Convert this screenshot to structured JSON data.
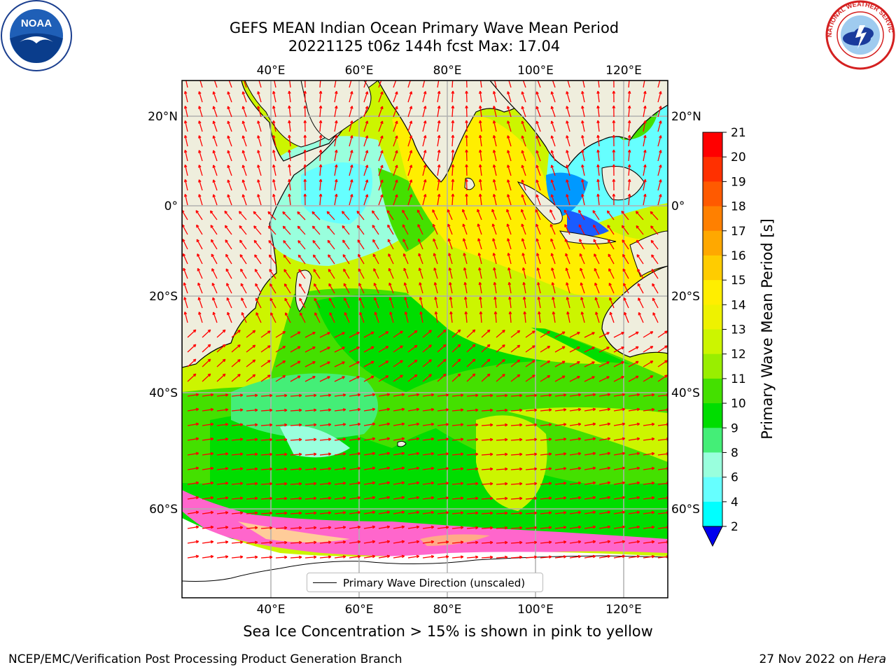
{
  "title": {
    "line1": "GEFS MEAN Indian Ocean Primary Wave Mean Period",
    "line2": "20221125 t06z 144h fcst   Max: 17.04"
  },
  "logos": {
    "left": {
      "name": "noaa-logo",
      "text": "NOAA"
    },
    "right": {
      "name": "nws-logo",
      "text": "NATIONAL WEATHER SERVICE"
    }
  },
  "map": {
    "lon_ticks": [
      "40°E",
      "60°E",
      "80°E",
      "100°E",
      "120°E"
    ],
    "lat_ticks_left": [
      "20°N",
      "0°",
      "20°S",
      "40°S",
      "60°S"
    ],
    "lat_ticks_right": [
      "20°N",
      "0°",
      "20°S",
      "40°S",
      "60°S"
    ],
    "legend_label": "Primary Wave Direction (unscaled)",
    "colors": {
      "land": "#efeedd",
      "arrow": "#ff0000",
      "grid": "#b0b0b0"
    }
  },
  "colorbar": {
    "title": "Primary Wave Mean Period [s]",
    "labels": [
      "21",
      "20",
      "19",
      "18",
      "17",
      "16",
      "15",
      "14",
      "13",
      "12",
      "11",
      "10",
      "9",
      "8",
      "6",
      "4",
      "2"
    ],
    "colors": [
      "#ff0000",
      "#ff3000",
      "#ff5a00",
      "#ff8000",
      "#ffa800",
      "#ffcc00",
      "#ffee00",
      "#eef200",
      "#ccf500",
      "#99ee00",
      "#44e000",
      "#00dd00",
      "#44ee77",
      "#99ffdd",
      "#66ffff",
      "#00ffff",
      "#0099ff",
      "#0000ee"
    ]
  },
  "footer": {
    "note": "Sea Ice Concentration > 15% is shown in pink to yellow",
    "left": "NCEP/EMC/Verification Post Processing Product Generation Branch",
    "date": "27 Nov 2022 on ",
    "machine": "Hera"
  }
}
